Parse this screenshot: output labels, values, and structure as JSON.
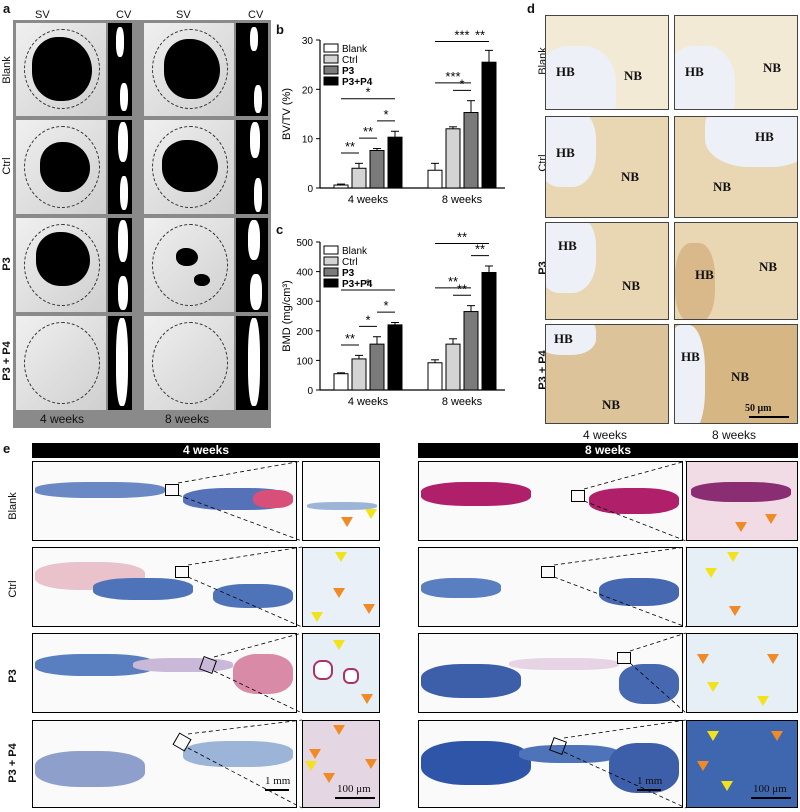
{
  "panel_labels": {
    "a": "a",
    "b": "b",
    "c": "c",
    "d": "d",
    "e": "e"
  },
  "panel_a": {
    "col_headers": [
      "SV",
      "CV",
      "SV",
      "CV"
    ],
    "row_labels": [
      "Blank",
      "Ctrl",
      "P3",
      "P3 + P4"
    ],
    "time_labels": [
      "4 weeks",
      "8 weeks"
    ]
  },
  "panel_d": {
    "row_labels": [
      "Blank",
      "Ctrl",
      "P3",
      "P3 + P4"
    ],
    "time_labels": [
      "4 weeks",
      "8 weeks"
    ],
    "hb": "HB",
    "nb": "NB",
    "scale": "50 μm"
  },
  "panel_e": {
    "headers": [
      "4 weeks",
      "8 weeks"
    ],
    "row_labels": [
      "Blank",
      "Ctrl",
      "P3",
      "P3 + P4"
    ],
    "scale_low": "1 mm",
    "scale_high": "100 μm"
  },
  "chart_data": [
    {
      "type": "bar",
      "panel": "b",
      "ylabel": "BV/TV (%)",
      "categories": [
        "4 weeks",
        "8 weeks"
      ],
      "ylim": [
        0,
        30
      ],
      "yticks": [
        0,
        10,
        20,
        30
      ],
      "series": [
        {
          "name": "Blank",
          "values": [
            0.6,
            3.6
          ],
          "err": [
            0.2,
            1.4
          ],
          "color": "#ffffff"
        },
        {
          "name": "Ctrl",
          "values": [
            4.0,
            12.0
          ],
          "err": [
            1.0,
            0.4
          ],
          "color": "#d4d4d4"
        },
        {
          "name": "P3",
          "values": [
            7.6,
            15.3
          ],
          "err": [
            0.4,
            2.4
          ],
          "color": "#7a7a7a"
        },
        {
          "name": "P3+P4",
          "values": [
            10.3,
            25.5
          ],
          "err": [
            1.2,
            2.4
          ],
          "color": "#000000"
        }
      ],
      "significance": [
        "**",
        "**",
        "*",
        "*",
        "***",
        "*",
        "**",
        "***"
      ]
    },
    {
      "type": "bar",
      "panel": "c",
      "ylabel": "BMD (mg/cm³)",
      "categories": [
        "4 weeks",
        "8 weeks"
      ],
      "ylim": [
        0,
        500
      ],
      "yticks": [
        0,
        100,
        200,
        300,
        400,
        500
      ],
      "series": [
        {
          "name": "Blank",
          "values": [
            55,
            92
          ],
          "err": [
            3,
            10
          ],
          "color": "#ffffff"
        },
        {
          "name": "Ctrl",
          "values": [
            105,
            155
          ],
          "err": [
            12,
            18
          ],
          "color": "#d4d4d4"
        },
        {
          "name": "P3",
          "values": [
            155,
            265
          ],
          "err": [
            25,
            20
          ],
          "color": "#7a7a7a"
        },
        {
          "name": "P3+P4",
          "values": [
            220,
            397
          ],
          "err": [
            8,
            22
          ],
          "color": "#000000"
        }
      ],
      "significance": [
        "**",
        "*",
        "*",
        "*",
        "**",
        "**",
        "**",
        "**"
      ]
    }
  ]
}
